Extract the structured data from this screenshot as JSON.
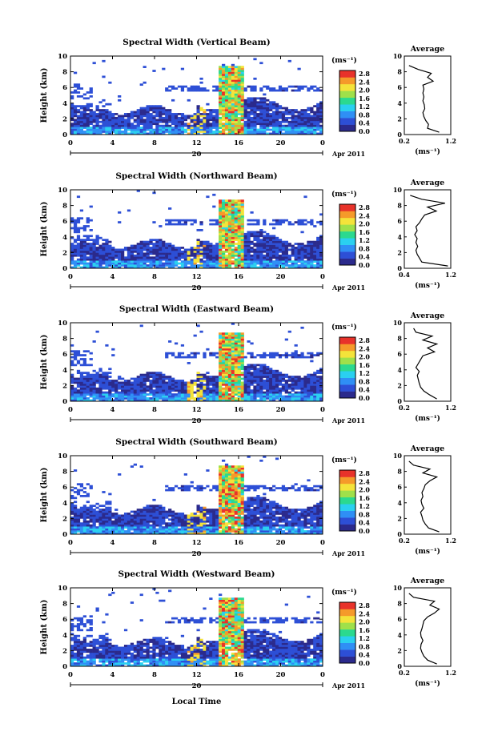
{
  "figure": {
    "xlabel": "Local Time",
    "date_label": "Apr 2011",
    "day_label": "20",
    "colorbar_unit": "(ms⁻¹)",
    "colorbar_ticks": [
      "0.0",
      "0.4",
      "0.8",
      "1.2",
      "1.6",
      "2.0",
      "2.4",
      "2.8"
    ],
    "colors": [
      "#2b2a8c",
      "#2d4fd6",
      "#2f8ff5",
      "#2ad0f0",
      "#2bd98f",
      "#9fe04a",
      "#f4e33a",
      "#f59a2a",
      "#e8322a"
    ]
  },
  "chart_data": [
    {
      "type": "heatmap",
      "title": "Spectral Width (Vertical Beam)",
      "ylabel": "Height (km)",
      "xlim": [
        0,
        24
      ],
      "ylim": [
        0,
        10
      ],
      "x_ticks": [
        "0",
        "4",
        "8",
        "12",
        "16",
        "20",
        "0"
      ],
      "y_ticks": [
        "0",
        "2",
        "4",
        "6",
        "8",
        "10"
      ],
      "zlim": [
        0,
        3.0
      ],
      "profile": {
        "title": "Average",
        "xlabel": "(ms⁻¹)",
        "x_ticks": [
          "0.2",
          "1.2"
        ],
        "xlim": [
          0.2,
          1.2
        ],
        "y_ticks": [
          "0",
          "2",
          "4",
          "6",
          "8",
          "10"
        ],
        "height": [
          0.3,
          0.8,
          1.3,
          1.8,
          2.3,
          2.8,
          3.3,
          3.8,
          4.3,
          4.8,
          5.3,
          5.8,
          6.3,
          6.8,
          7.3,
          7.8,
          8.3,
          8.8
        ],
        "value": [
          0.95,
          0.7,
          0.72,
          0.66,
          0.62,
          0.6,
          0.64,
          0.63,
          0.6,
          0.62,
          0.6,
          0.62,
          0.6,
          0.82,
          0.7,
          0.78,
          0.5,
          0.3
        ]
      }
    },
    {
      "type": "heatmap",
      "title": "Spectral Width (Northward Beam)",
      "ylabel": "Height (km)",
      "xlim": [
        0,
        24
      ],
      "ylim": [
        0,
        10
      ],
      "x_ticks": [
        "0",
        "4",
        "8",
        "12",
        "16",
        "20",
        "0"
      ],
      "y_ticks": [
        "0",
        "2",
        "4",
        "6",
        "8",
        "10"
      ],
      "zlim": [
        0,
        3.0
      ],
      "profile": {
        "title": "Average",
        "xlabel": "(ms⁻¹)",
        "x_ticks": [
          "0.4",
          "1.2"
        ],
        "xlim": [
          0.4,
          1.2
        ],
        "y_ticks": [
          "0",
          "2",
          "4",
          "6",
          "8",
          "10"
        ],
        "height": [
          0.3,
          0.8,
          1.3,
          1.8,
          2.3,
          2.8,
          3.3,
          3.8,
          4.3,
          4.8,
          5.3,
          5.8,
          6.3,
          6.8,
          7.3,
          7.8,
          8.3,
          8.8,
          9.3
        ],
        "value": [
          1.15,
          0.7,
          0.66,
          0.62,
          0.6,
          0.63,
          0.6,
          0.62,
          0.58,
          0.62,
          0.6,
          0.66,
          0.7,
          0.75,
          0.95,
          0.8,
          1.1,
          0.7,
          0.5
        ]
      }
    },
    {
      "type": "heatmap",
      "title": "Spectral Width (Eastward Beam)",
      "ylabel": "Height (km)",
      "xlim": [
        0,
        24
      ],
      "ylim": [
        0,
        10
      ],
      "x_ticks": [
        "0",
        "4",
        "8",
        "12",
        "16",
        "20",
        "0"
      ],
      "y_ticks": [
        "0",
        "2",
        "4",
        "6",
        "8",
        "10"
      ],
      "zlim": [
        0,
        3.0
      ],
      "profile": {
        "title": "Average",
        "xlabel": "(ms⁻¹)",
        "x_ticks": [
          "0.2",
          "1.2"
        ],
        "xlim": [
          0.2,
          1.2
        ],
        "y_ticks": [
          "0",
          "2",
          "4",
          "6",
          "8",
          "10"
        ],
        "height": [
          0.3,
          0.8,
          1.3,
          1.8,
          2.3,
          2.8,
          3.3,
          3.8,
          4.3,
          4.8,
          5.3,
          5.8,
          6.3,
          6.8,
          7.3,
          7.8,
          8.3,
          8.8,
          9.3
        ],
        "value": [
          0.9,
          0.75,
          0.62,
          0.55,
          0.52,
          0.5,
          0.48,
          0.52,
          0.45,
          0.5,
          0.55,
          0.6,
          0.85,
          0.7,
          0.9,
          0.6,
          0.8,
          0.45,
          0.4
        ]
      }
    },
    {
      "type": "heatmap",
      "title": "Spectral Width (Southward Beam)",
      "ylabel": "Height (km)",
      "xlim": [
        0,
        24
      ],
      "ylim": [
        0,
        10
      ],
      "x_ticks": [
        "0",
        "4",
        "8",
        "12",
        "16",
        "20",
        "0"
      ],
      "y_ticks": [
        "0",
        "2",
        "4",
        "6",
        "8",
        "10"
      ],
      "zlim": [
        0,
        3.0
      ],
      "profile": {
        "title": "Average",
        "xlabel": "(ms⁻¹)",
        "x_ticks": [
          "0.2",
          "1.2"
        ],
        "xlim": [
          0.2,
          1.2
        ],
        "y_ticks": [
          "0",
          "2",
          "4",
          "6",
          "8",
          "10"
        ],
        "height": [
          0.3,
          0.8,
          1.3,
          1.8,
          2.3,
          2.8,
          3.3,
          3.8,
          4.3,
          4.8,
          5.3,
          5.8,
          6.3,
          6.8,
          7.3,
          7.8,
          8.3,
          8.8,
          9.3
        ],
        "value": [
          0.95,
          0.72,
          0.65,
          0.6,
          0.58,
          0.55,
          0.62,
          0.58,
          0.56,
          0.6,
          0.58,
          0.62,
          0.65,
          0.75,
          0.9,
          0.6,
          0.75,
          0.4,
          0.3
        ]
      }
    },
    {
      "type": "heatmap",
      "title": "Spectral Width (Westward Beam)",
      "ylabel": "Height (km)",
      "xlim": [
        0,
        24
      ],
      "ylim": [
        0,
        10
      ],
      "x_ticks": [
        "0",
        "4",
        "8",
        "12",
        "16",
        "20",
        "0"
      ],
      "y_ticks": [
        "0",
        "2",
        "4",
        "6",
        "8",
        "10"
      ],
      "zlim": [
        0,
        3.0
      ],
      "profile": {
        "title": "Average",
        "xlabel": "(ms⁻¹)",
        "x_ticks": [
          "0.2",
          "1.2"
        ],
        "xlim": [
          0.2,
          1.2
        ],
        "y_ticks": [
          "0",
          "2",
          "4",
          "6",
          "8",
          "10"
        ],
        "height": [
          0.3,
          0.8,
          1.3,
          1.8,
          2.3,
          2.8,
          3.3,
          3.8,
          4.3,
          4.8,
          5.3,
          5.8,
          6.3,
          6.8,
          7.3,
          7.8,
          8.3,
          8.8,
          9.3
        ],
        "value": [
          0.9,
          0.7,
          0.62,
          0.58,
          0.55,
          0.56,
          0.6,
          0.56,
          0.55,
          0.58,
          0.6,
          0.62,
          0.7,
          0.85,
          0.95,
          0.75,
          0.85,
          0.4,
          0.3
        ]
      }
    }
  ]
}
